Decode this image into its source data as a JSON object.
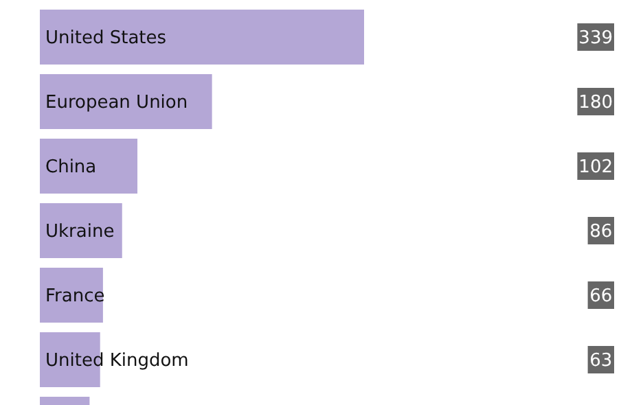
{
  "chart_data": {
    "type": "bar",
    "orientation": "horizontal",
    "categories": [
      "United States",
      "European Union",
      "China",
      "Ukraine",
      "France",
      "United Kingdom",
      null
    ],
    "values": [
      339,
      180,
      102,
      86,
      66,
      63,
      52
    ],
    "value_labels": [
      "339",
      "180",
      "102",
      "86",
      "66",
      "63",
      null
    ],
    "color": "#b4a7d6"
  }
}
